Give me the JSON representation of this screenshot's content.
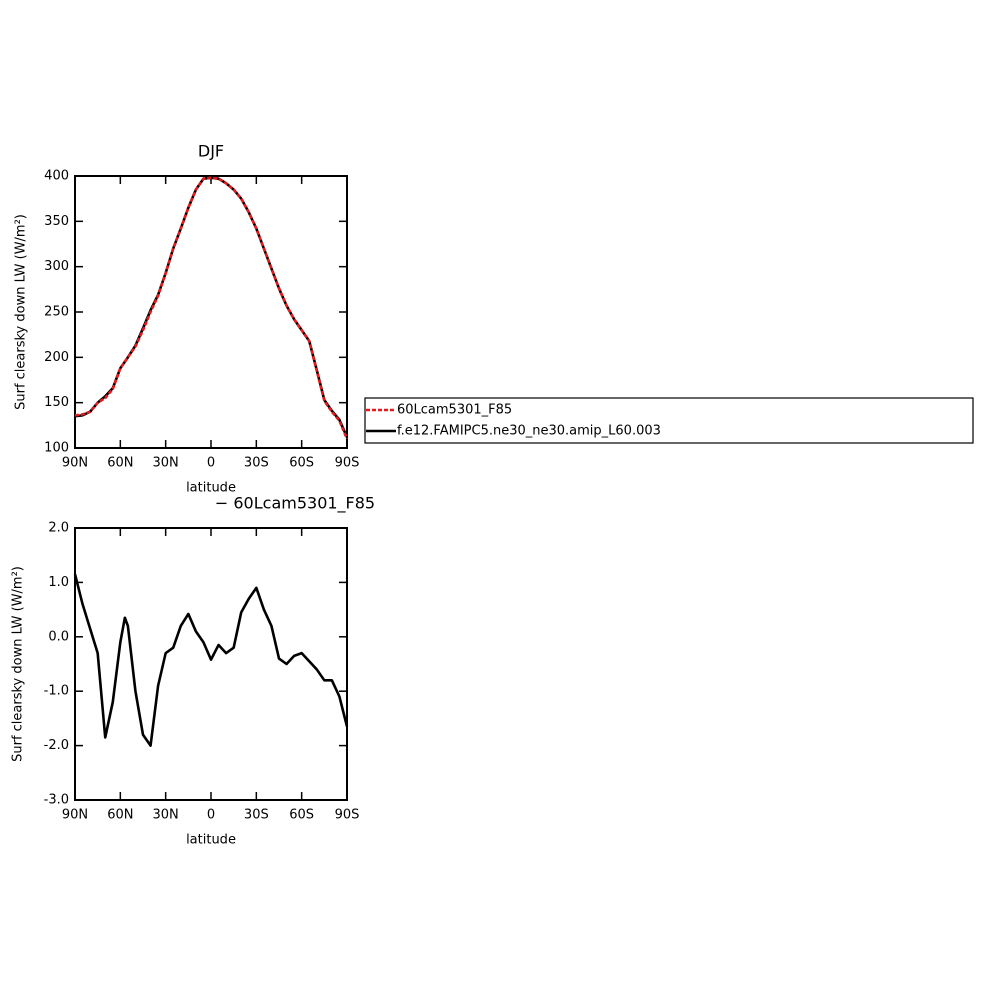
{
  "chart_data": [
    {
      "type": "line",
      "title": "DJF",
      "x_label": "latitude",
      "y_label": "Surf clearsky down LW (W/m²)",
      "x": [
        90,
        85,
        80,
        75,
        70,
        65,
        60,
        55,
        50,
        45,
        40,
        35,
        30,
        25,
        20,
        15,
        10,
        5,
        0,
        -5,
        -10,
        -15,
        -20,
        -25,
        -30,
        -35,
        -40,
        -45,
        -50,
        -55,
        -60,
        -65,
        -70,
        -75,
        -80,
        -85,
        -90
      ],
      "xlim": [
        90,
        -90
      ],
      "xticks": [
        {
          "value": 90,
          "label": "90N"
        },
        {
          "value": 60,
          "label": "60N"
        },
        {
          "value": 30,
          "label": "30N"
        },
        0,
        {
          "value": -30,
          "label": "30S"
        },
        {
          "value": -60,
          "label": "60S"
        },
        {
          "value": -90,
          "label": "90S"
        }
      ],
      "ylim": [
        100,
        400
      ],
      "yticks": [
        100,
        150,
        200,
        250,
        300,
        350,
        400
      ],
      "series": [
        {
          "name": "f.e12.FAMIPC5.ne30_ne30.amip_L60.003",
          "color": "#000000",
          "dash": false,
          "values": [
            135,
            136,
            140,
            150,
            157,
            166,
            188,
            200,
            213,
            232,
            252,
            269,
            293,
            320,
            342,
            365,
            385,
            397,
            398,
            397,
            392,
            385,
            375,
            360,
            342,
            320,
            298,
            276,
            257,
            242,
            230,
            218,
            186,
            153,
            141,
            131,
            112
          ]
        },
        {
          "name": "60Lcam5301_F85",
          "color": "#e41a1c",
          "dash": true,
          "values": [
            136,
            137,
            140,
            150,
            155,
            165,
            188,
            200,
            212,
            230,
            250,
            268,
            293,
            320,
            342,
            365,
            385,
            397,
            398,
            397,
            392,
            385,
            375,
            360,
            342,
            320,
            298,
            276,
            257,
            242,
            230,
            218,
            185,
            152,
            140,
            130,
            110
          ]
        }
      ],
      "legend": "right"
    },
    {
      "type": "line",
      "title": "− 60Lcam5301_F85",
      "x_label": "latitude",
      "y_label": "Surf clearsky down LW (W/m²)",
      "x": [
        90,
        85,
        80,
        75,
        70,
        65,
        60,
        57,
        55,
        50,
        45,
        40,
        35,
        30,
        25,
        20,
        15,
        10,
        5,
        0,
        -5,
        -10,
        -15,
        -20,
        -25,
        -30,
        -35,
        -40,
        -45,
        -50,
        -55,
        -60,
        -65,
        -70,
        -75,
        -80,
        -85,
        -90
      ],
      "xlim": [
        90,
        -90
      ],
      "xticks": [
        {
          "value": 90,
          "label": "90N"
        },
        {
          "value": 60,
          "label": "60N"
        },
        {
          "value": 30,
          "label": "30N"
        },
        0,
        {
          "value": -30,
          "label": "30S"
        },
        {
          "value": -60,
          "label": "60S"
        },
        {
          "value": -90,
          "label": "90S"
        }
      ],
      "ylim": [
        -3,
        2
      ],
      "yticks": [
        {
          "value": -3,
          "label": "-3.0"
        },
        {
          "value": -2,
          "label": "-2.0"
        },
        {
          "value": -1,
          "label": "-1.0"
        },
        {
          "value": 0,
          "label": "0.0"
        },
        {
          "value": 1,
          "label": "1.0"
        },
        {
          "value": 2,
          "label": "2.0"
        }
      ],
      "series": [
        {
          "color": "#000000",
          "dash": false,
          "values": [
            1.15,
            0.6,
            0.15,
            -0.3,
            -1.85,
            -1.2,
            -0.1,
            0.35,
            0.2,
            -1.0,
            -1.8,
            -2.0,
            -0.9,
            -0.3,
            -0.2,
            0.2,
            0.42,
            0.1,
            -0.1,
            -0.42,
            -0.15,
            -0.3,
            -0.2,
            0.45,
            0.7,
            0.9,
            0.5,
            0.2,
            -0.4,
            -0.5,
            -0.35,
            -0.3,
            -0.45,
            -0.6,
            -0.8,
            -0.8,
            -1.1,
            -1.65
          ]
        }
      ]
    }
  ]
}
